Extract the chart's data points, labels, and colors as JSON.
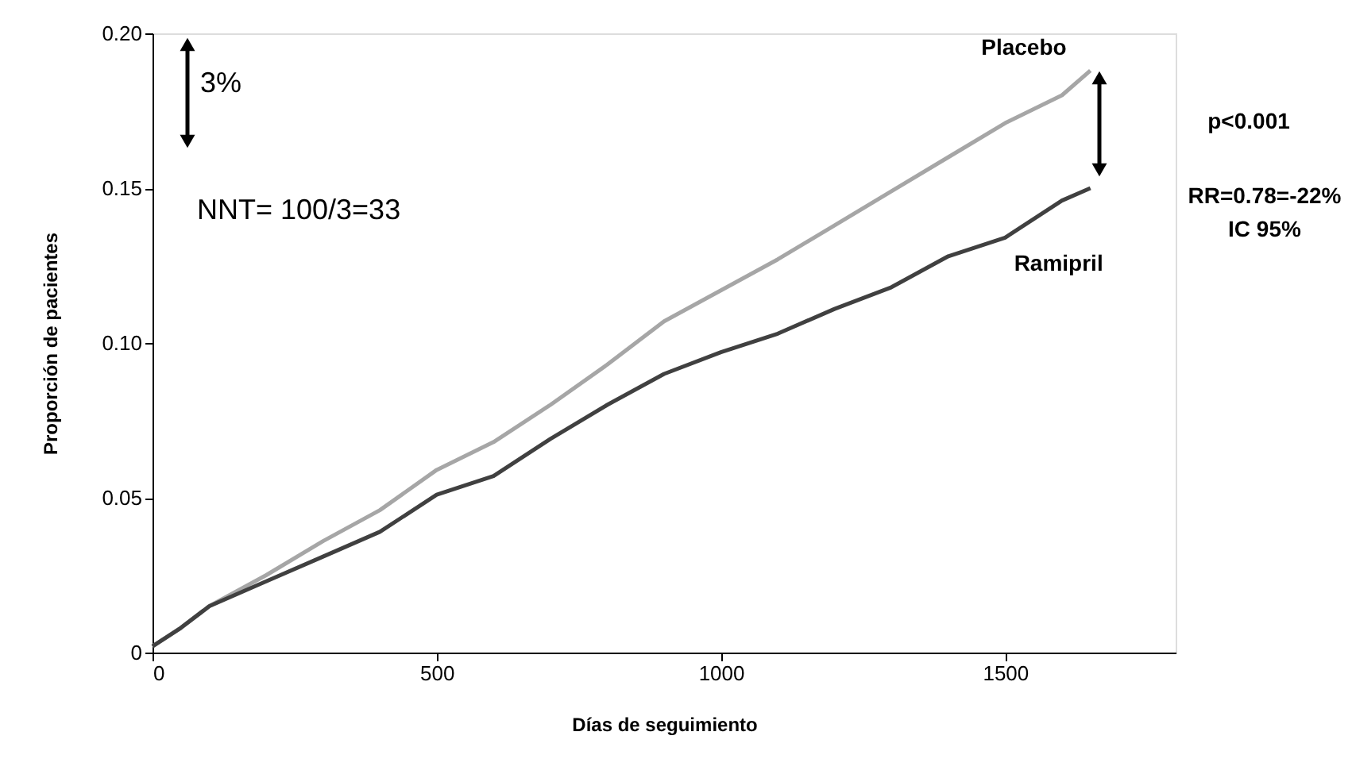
{
  "chart_data": {
    "type": "line",
    "xlabel": "Días de seguimiento",
    "ylabel": "Proporción de pacientes",
    "x": [
      0,
      50,
      100,
      200,
      300,
      400,
      500,
      600,
      700,
      800,
      900,
      1000,
      1100,
      1200,
      1300,
      1400,
      1500,
      1600,
      1650
    ],
    "series": [
      {
        "name": "Placebo",
        "color": "#a6a6a6",
        "values": [
          0.002,
          0.008,
          0.015,
          0.025,
          0.036,
          0.046,
          0.059,
          0.068,
          0.08,
          0.093,
          0.107,
          0.117,
          0.127,
          0.138,
          0.149,
          0.16,
          0.171,
          0.18,
          0.188
        ]
      },
      {
        "name": "Ramipril",
        "color": "#404040",
        "values": [
          0.002,
          0.008,
          0.015,
          0.023,
          0.031,
          0.039,
          0.051,
          0.057,
          0.069,
          0.08,
          0.09,
          0.097,
          0.103,
          0.111,
          0.118,
          0.128,
          0.134,
          0.146,
          0.15
        ]
      }
    ],
    "xlim": [
      0,
      1800
    ],
    "xticks": [
      0,
      500,
      1000,
      1500
    ],
    "ylim": [
      0,
      0.2
    ],
    "yticks": [
      {
        "value": 0,
        "label": "0"
      },
      {
        "value": 0.05,
        "label": "0.05"
      },
      {
        "value": 0.1,
        "label": "0.10"
      },
      {
        "value": 0.15,
        "label": "0.15"
      },
      {
        "value": 0.2,
        "label": "0.20"
      }
    ],
    "annotations": [
      "3%",
      "NNT= 100/3=33",
      "p<0.001",
      "RR=0.78=-22%",
      "IC 95%"
    ],
    "grid": false,
    "legend": false,
    "marker": "none",
    "line_style": "solid"
  }
}
